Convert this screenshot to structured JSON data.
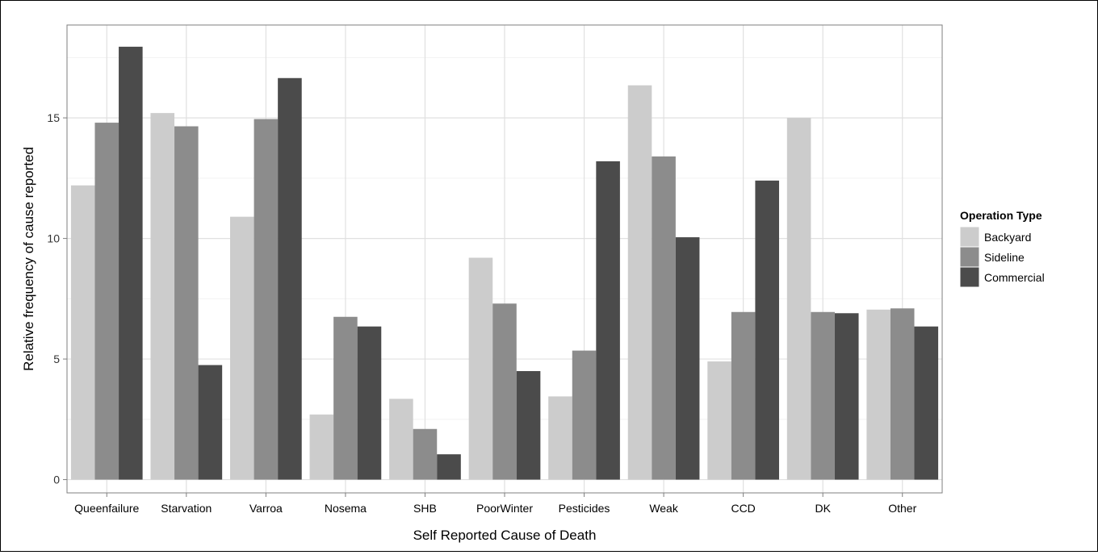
{
  "chart_data": {
    "type": "bar",
    "title": "",
    "xlabel": "Self Reported Cause of Death",
    "ylabel": "Relative frequency of cause reported",
    "categories": [
      "Queenfailure",
      "Starvation",
      "Varroa",
      "Nosema",
      "SHB",
      "PoorWinter",
      "Pesticides",
      "Weak",
      "CCD",
      "DK",
      "Other"
    ],
    "series": [
      {
        "name": "Backyard",
        "color": "#cccccc",
        "values": [
          12.2,
          15.2,
          10.9,
          2.7,
          3.35,
          9.2,
          3.45,
          16.35,
          4.9,
          15.0,
          7.05
        ]
      },
      {
        "name": "Sideline",
        "color": "#8c8c8c",
        "values": [
          14.8,
          14.65,
          14.95,
          6.75,
          2.1,
          7.3,
          5.35,
          13.4,
          6.95,
          6.95,
          7.1
        ]
      },
      {
        "name": "Commercial",
        "color": "#4b4b4b",
        "values": [
          17.95,
          4.75,
          16.65,
          6.35,
          1.05,
          4.5,
          13.2,
          10.05,
          12.4,
          6.9,
          6.35
        ]
      }
    ],
    "yticks": [
      0,
      5,
      10,
      15
    ],
    "ylim": [
      -0.55,
      18.85
    ],
    "grid": true,
    "legend": {
      "title": "Operation Type",
      "position": "right"
    }
  }
}
